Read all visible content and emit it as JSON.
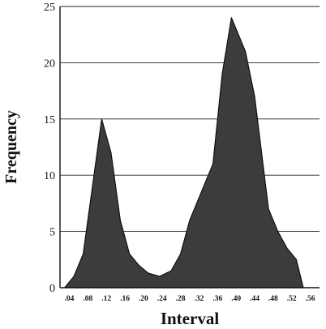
{
  "chart_data": {
    "type": "area",
    "xlabel": "Interval",
    "ylabel": "Frequency",
    "xlim": [
      0.02,
      0.58
    ],
    "ylim": [
      0,
      25
    ],
    "grid": true,
    "legend": "none",
    "x_ticks": [
      ".04",
      ".08",
      ".12",
      ".16",
      ".20",
      ".24",
      ".28",
      ".32",
      ".36",
      ".40",
      ".44",
      ".48",
      ".52",
      ".56"
    ],
    "y_ticks": [
      "0",
      "5",
      "10",
      "15",
      "20",
      "25"
    ],
    "colors": {
      "fill": "#3c3c3c",
      "stroke": "#111111",
      "grid": "#222222"
    },
    "series": [
      {
        "x": [
          0.03,
          0.05,
          0.07,
          0.09,
          0.11,
          0.13,
          0.15,
          0.17,
          0.19,
          0.21,
          0.235,
          0.26,
          0.28,
          0.3,
          0.33,
          0.35,
          0.37,
          0.39,
          0.42,
          0.44,
          0.47,
          0.49,
          0.51,
          0.53,
          0.545
        ],
        "y": [
          0,
          1,
          3,
          9,
          15,
          12,
          6,
          3,
          2,
          1.3,
          1,
          1.5,
          3,
          6,
          9,
          11,
          19,
          24,
          21,
          17,
          7,
          5,
          3.5,
          2.5,
          0
        ]
      }
    ]
  }
}
